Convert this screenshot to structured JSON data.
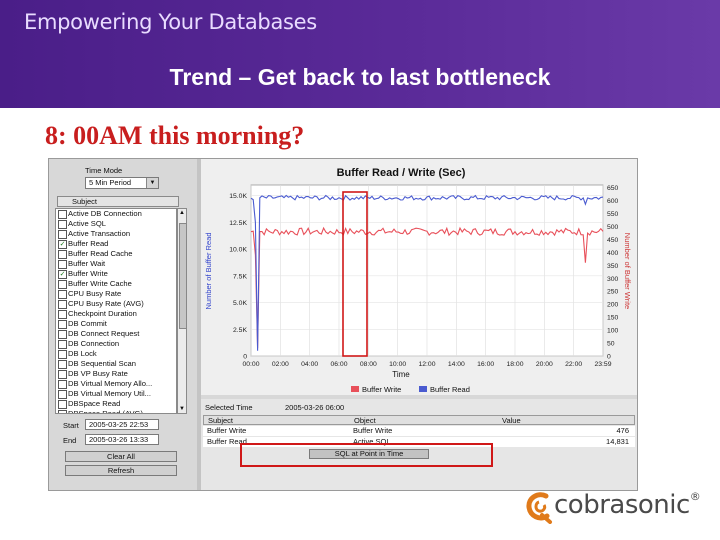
{
  "banner": {
    "tagline": "Empowering Your Databases",
    "slide_title": "Trend – Get back to last  bottleneck"
  },
  "question": "8: 00AM this morning?",
  "left_panel": {
    "time_mode_label": "Time Mode",
    "time_mode_value": "5 Min Period",
    "subject_header": "Subject",
    "subjects": [
      {
        "label": "Active DB Connection",
        "checked": false
      },
      {
        "label": "Active SQL",
        "checked": false
      },
      {
        "label": "Active Transaction",
        "checked": false
      },
      {
        "label": "Buffer Read",
        "checked": true
      },
      {
        "label": "Buffer Read Cache",
        "checked": false
      },
      {
        "label": "Buffer Wait",
        "checked": false
      },
      {
        "label": "Buffer Write",
        "checked": true
      },
      {
        "label": "Buffer Write Cache",
        "checked": false
      },
      {
        "label": "CPU Busy Rate",
        "checked": false
      },
      {
        "label": "CPU Busy Rate (AVG)",
        "checked": false
      },
      {
        "label": "Checkpoint Duration",
        "checked": false
      },
      {
        "label": "DB Commit",
        "checked": false
      },
      {
        "label": "DB Connect Request",
        "checked": false
      },
      {
        "label": "DB Connection",
        "checked": false
      },
      {
        "label": "DB Lock",
        "checked": false
      },
      {
        "label": "DB Sequential Scan",
        "checked": false
      },
      {
        "label": "DB VP Busy Rate",
        "checked": false
      },
      {
        "label": "DB Virtual Memory Allo...",
        "checked": false
      },
      {
        "label": "DB Virtual Memory Util...",
        "checked": false
      },
      {
        "label": "DBSpace Read",
        "checked": false
      },
      {
        "label": "DBSpace Read (AVG)",
        "checked": false
      }
    ],
    "start_label": "Start",
    "start_value": "2005-03-25 22:53",
    "end_label": "End",
    "end_value": "2005-03-26 13:33",
    "clear_all": "Clear All",
    "refresh": "Refresh"
  },
  "chart_data": {
    "type": "line",
    "title": "Buffer Read / Write (Sec)",
    "xlabel": "Time",
    "ylabel": "Number of Buffer Read",
    "ylabel_right": "Number of Buffer Write",
    "x_ticks": [
      "00:00",
      "02:00",
      "04:00",
      "06:00",
      "08:00",
      "10:00",
      "12:00",
      "14:00",
      "16:00",
      "18:00",
      "20:00",
      "22:00",
      "23:59"
    ],
    "y_ticks_left": [
      "0",
      "2.5K",
      "5.0K",
      "7.5K",
      "10.0K",
      "12.5K",
      "15.0K"
    ],
    "y_ticks_right": [
      "0",
      "50",
      "100",
      "150",
      "200",
      "250",
      "300",
      "350",
      "400",
      "450",
      "500",
      "550",
      "600",
      "650"
    ],
    "ylim_left": [
      0,
      16000
    ],
    "ylim_right": [
      0,
      660
    ],
    "legend_placement": "bottom",
    "series": [
      {
        "name": "Buffer Write",
        "color": "#e8505a",
        "axis": "right",
        "baseline": 480,
        "values_note": ""
      },
      {
        "name": "Buffer Read",
        "color": "#4a5bd0",
        "axis": "left",
        "baseline": 14800,
        "values_note": ""
      }
    ]
  },
  "bottom_panel": {
    "selected_time_label": "Selected Time",
    "selected_time_value": "2005-03-26 06:00",
    "columns": [
      "Subject",
      "Object",
      "Value"
    ],
    "rows": [
      {
        "subject": "Buffer Write",
        "object": "Buffer Write",
        "value": "476"
      },
      {
        "subject": "Buffer Read",
        "object": "Active SQL",
        "value": "14,831"
      }
    ],
    "plot_button": "SQL at Point in Time"
  },
  "logo": {
    "text": "cobrasonic",
    "tm": "®"
  },
  "colors": {
    "banner": "#5a2a98",
    "question": "#c81e1e",
    "highlight": "#d01818",
    "write": "#e8505a",
    "read": "#4a5bd0"
  }
}
